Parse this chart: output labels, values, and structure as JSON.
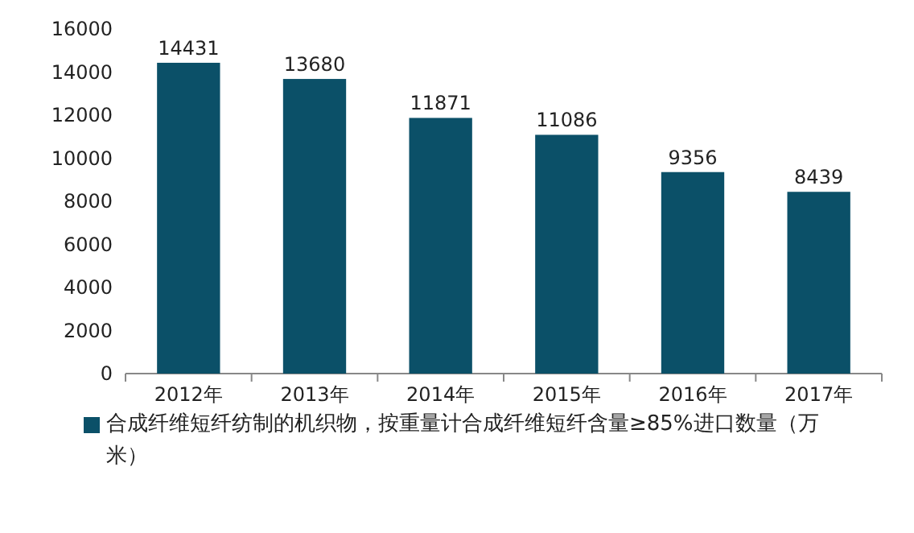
{
  "chart_data": {
    "type": "bar",
    "categories": [
      "2012年",
      "2013年",
      "2014年",
      "2015年",
      "2016年",
      "2017年"
    ],
    "series": [
      {
        "name": "合成纤维短纤纺制的机织物，按重量计合成纤维短纤含量≥85%进口数量（万米）",
        "color": "#0b5068",
        "values": [
          14431,
          13680,
          11871,
          11086,
          9356,
          8439
        ]
      }
    ],
    "ylim": [
      0,
      16000
    ],
    "yticks": [
      0,
      2000,
      4000,
      6000,
      8000,
      10000,
      12000,
      14000,
      16000
    ],
    "data_labels": true,
    "legend": "bottom"
  }
}
